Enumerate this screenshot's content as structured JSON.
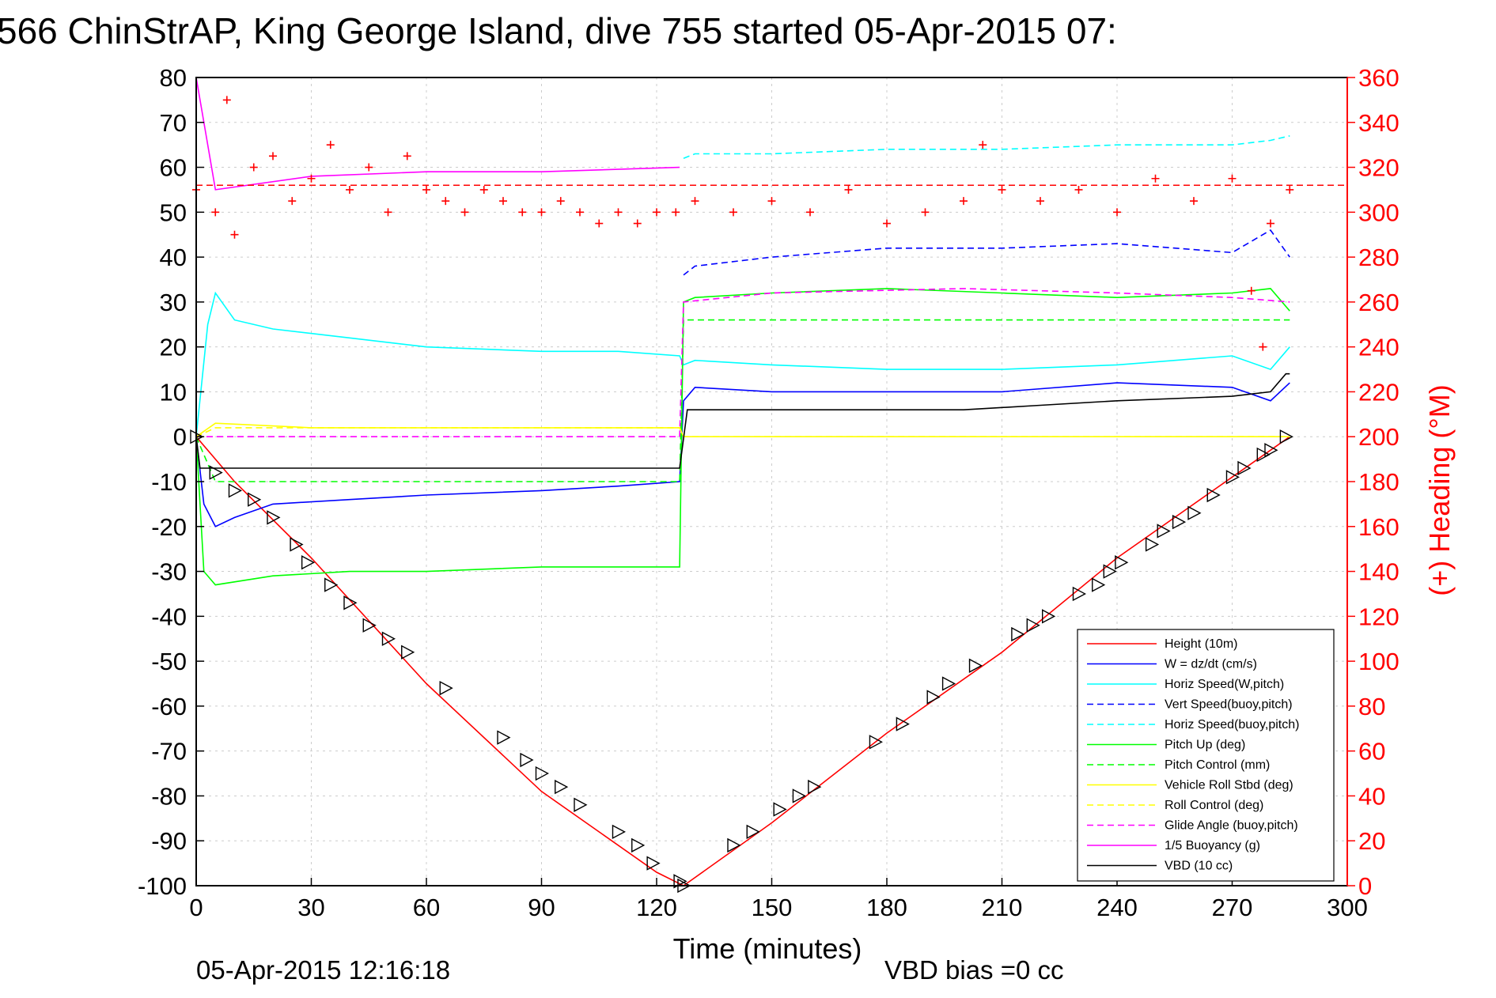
{
  "chart_data": {
    "type": "line",
    "title": "566 ChinStrAP, King George Island, dive 755 started 05-Apr-2015 07:",
    "xlabel": "Time (minutes)",
    "ylabel": "",
    "y2label": "(+) Heading (°M)",
    "footer_left": "05-Apr-2015 12:16:18",
    "footer_right": "VBD bias =0 cc",
    "xlim": [
      0,
      300
    ],
    "ylim": [
      -100,
      80
    ],
    "y2lim": [
      0,
      360
    ],
    "xticks": [
      "0",
      "30",
      "60",
      "90",
      "120",
      "150",
      "180",
      "210",
      "240",
      "270",
      "300"
    ],
    "yticks": [
      "80",
      "70",
      "60",
      "50",
      "40",
      "30",
      "20",
      "10",
      "0",
      "-10",
      "-20",
      "-30",
      "-40",
      "-50",
      "-60",
      "-70",
      "-80",
      "-90",
      "-100"
    ],
    "y2ticks": [
      "360",
      "340",
      "320",
      "300",
      "280",
      "260",
      "240",
      "220",
      "200",
      "180",
      "160",
      "140",
      "120",
      "100",
      "80",
      "60",
      "40",
      "20",
      "0"
    ],
    "grid": true,
    "legend_position": "bottom-right",
    "colors": {
      "axis": "#000000",
      "grid": "#cccccc",
      "heading": "#ff0000"
    },
    "series": [
      {
        "name": "Height (10m)",
        "color": "#ff0000",
        "style": "solid",
        "x": [
          0,
          10,
          30,
          60,
          90,
          120,
          127,
          150,
          180,
          210,
          240,
          270,
          285
        ],
        "y": [
          0,
          -10,
          -27,
          -55,
          -79,
          -97,
          -100,
          -86,
          -66,
          -48,
          -27,
          -9,
          0
        ]
      },
      {
        "name": "W = dz/dt (cm/s)",
        "color": "#0000ff",
        "style": "solid",
        "x": [
          0,
          2,
          5,
          10,
          20,
          40,
          60,
          90,
          110,
          126,
          127,
          130,
          150,
          180,
          210,
          240,
          270,
          280,
          285
        ],
        "y": [
          0,
          -15,
          -20,
          -18,
          -15,
          -14,
          -13,
          -12,
          -11,
          -10,
          8,
          11,
          10,
          10,
          10,
          12,
          11,
          8,
          12
        ]
      },
      {
        "name": "Horiz Speed(W,pitch)",
        "color": "#00ffff",
        "style": "solid",
        "x": [
          0,
          3,
          5,
          10,
          20,
          40,
          60,
          90,
          110,
          126,
          127,
          130,
          150,
          180,
          210,
          240,
          270,
          280,
          285
        ],
        "y": [
          0,
          25,
          32,
          26,
          24,
          22,
          20,
          19,
          19,
          18,
          16,
          17,
          16,
          15,
          15,
          16,
          18,
          15,
          20
        ]
      },
      {
        "name": "Vert Speed(buoy,pitch)",
        "color": "#0000ff",
        "style": "dashed",
        "x": [
          127,
          130,
          150,
          180,
          210,
          240,
          270,
          280,
          285
        ],
        "y": [
          36,
          38,
          40,
          42,
          42,
          43,
          41,
          46,
          40
        ]
      },
      {
        "name": "Horiz Speed(buoy,pitch)",
        "color": "#00ffff",
        "style": "dashed",
        "x": [
          127,
          130,
          150,
          180,
          210,
          240,
          270,
          280,
          285
        ],
        "y": [
          62,
          63,
          63,
          64,
          64,
          65,
          65,
          66,
          67
        ]
      },
      {
        "name": "Pitch Up (deg)",
        "color": "#00ff00",
        "style": "solid",
        "x": [
          0,
          2,
          5,
          20,
          40,
          60,
          90,
          120,
          126,
          127,
          130,
          150,
          180,
          210,
          240,
          270,
          280,
          285
        ],
        "y": [
          0,
          -30,
          -33,
          -31,
          -30,
          -30,
          -29,
          -29,
          -29,
          30,
          31,
          32,
          33,
          32,
          31,
          32,
          33,
          28
        ]
      },
      {
        "name": "Pitch Control (mm)",
        "color": "#00ff00",
        "style": "dashed",
        "x": [
          0,
          5,
          60,
          126,
          127,
          200,
          285
        ],
        "y": [
          0,
          -10,
          -10,
          -10,
          26,
          26,
          26
        ]
      },
      {
        "name": "Vehicle Roll Stbd (deg)",
        "color": "#ffff00",
        "style": "solid",
        "x": [
          0,
          5,
          30,
          60,
          90,
          126,
          127,
          150,
          200,
          240,
          270,
          285
        ],
        "y": [
          0,
          3,
          2,
          2,
          2,
          2,
          0,
          0,
          0,
          0,
          0,
          0
        ]
      },
      {
        "name": "Roll Control (deg)",
        "color": "#ffff00",
        "style": "dashed",
        "x": [
          0,
          5,
          60,
          126,
          127,
          200,
          285
        ],
        "y": [
          0,
          2,
          2,
          2,
          0,
          0,
          0
        ]
      },
      {
        "name": "Glide Angle (buoy,pitch)",
        "color": "#ff00ff",
        "style": "dashed",
        "x": [
          0,
          126,
          127,
          150,
          200,
          240,
          270,
          285
        ],
        "y": [
          0,
          0,
          30,
          32,
          33,
          32,
          31,
          30
        ]
      },
      {
        "name": "1/5 Buoyancy (g)",
        "color": "#ff00ff",
        "style": "solid",
        "x": [
          0,
          5,
          30,
          60,
          90,
          126
        ],
        "y": [
          80,
          55,
          58,
          59,
          59,
          60
        ]
      },
      {
        "name": "VBD (10 cc)",
        "color": "#000000",
        "style": "solid",
        "x": [
          0,
          1,
          30,
          60,
          126,
          128,
          150,
          200,
          220,
          240,
          270,
          280,
          284,
          285
        ],
        "y": [
          0,
          -7,
          -7,
          -7,
          -7,
          6,
          6,
          6,
          7,
          8,
          9,
          10,
          14,
          14
        ]
      }
    ],
    "heading": {
      "name": "(+) Heading (°M)",
      "color": "#ff0000",
      "marker": "+",
      "reference_value": 312,
      "x": [
        0,
        5,
        8,
        10,
        15,
        20,
        25,
        30,
        35,
        40,
        45,
        50,
        55,
        60,
        65,
        70,
        75,
        80,
        85,
        90,
        95,
        100,
        105,
        110,
        115,
        120,
        125,
        130,
        140,
        150,
        160,
        170,
        180,
        190,
        200,
        205,
        210,
        220,
        230,
        240,
        250,
        260,
        270,
        275,
        278,
        280,
        285
      ],
      "y": [
        310,
        300,
        350,
        290,
        320,
        325,
        305,
        315,
        330,
        310,
        320,
        300,
        325,
        310,
        305,
        300,
        310,
        305,
        300,
        300,
        305,
        300,
        295,
        300,
        295,
        300,
        300,
        305,
        300,
        305,
        300,
        310,
        295,
        300,
        305,
        330,
        310,
        305,
        310,
        300,
        315,
        305,
        315,
        265,
        240,
        295,
        310
      ]
    },
    "glider_markers": {
      "x": [
        0,
        5,
        10,
        15,
        20,
        26,
        29,
        35,
        40,
        45,
        50,
        55,
        65,
        80,
        86,
        90,
        95,
        100,
        110,
        115,
        119,
        126,
        127,
        140,
        145,
        152,
        157,
        161,
        177,
        184,
        192,
        196,
        203,
        214,
        218,
        222,
        230,
        235,
        238,
        241,
        249,
        252,
        256,
        260,
        265,
        270,
        273,
        278,
        280,
        284
      ],
      "y": [
        0,
        -8,
        -12,
        -14,
        -18,
        -24,
        -28,
        -33,
        -37,
        -42,
        -45,
        -48,
        -56,
        -67,
        -72,
        -75,
        -78,
        -82,
        -88,
        -91,
        -95,
        -99,
        -100,
        -91,
        -88,
        -83,
        -80,
        -78,
        -68,
        -64,
        -58,
        -55,
        -51,
        -44,
        -42,
        -40,
        -35,
        -33,
        -30,
        -28,
        -24,
        -21,
        -19,
        -17,
        -13,
        -9,
        -7,
        -4,
        -3,
        0
      ]
    }
  }
}
